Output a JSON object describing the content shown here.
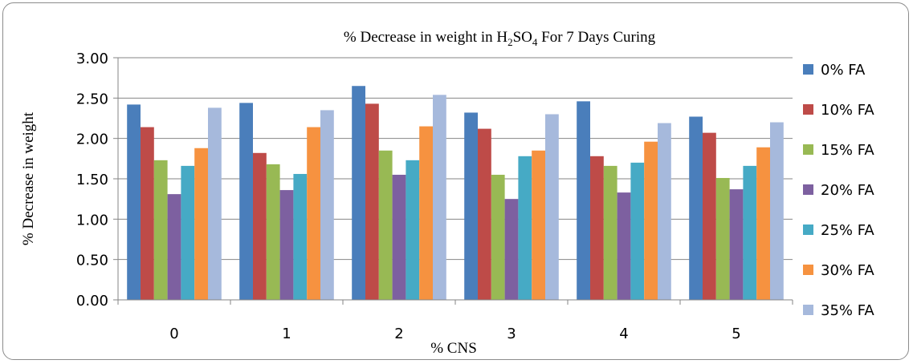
{
  "chart_data": {
    "type": "bar",
    "title": {
      "prefix": "% Decrease in weight in H",
      "sub1": "2",
      "mid": "SO",
      "sub2": "4",
      "suffix": " For 7 Days Curing"
    },
    "xlabel": "% CNS",
    "ylabel": "% Decrease in weight",
    "ylim": [
      0,
      3
    ],
    "yticks": [
      "0.00",
      "0.50",
      "1.00",
      "1.50",
      "2.00",
      "2.50",
      "3.00"
    ],
    "grid": true,
    "legend_position": "right",
    "categories": [
      "0",
      "1",
      "2",
      "3",
      "4",
      "5"
    ],
    "series": [
      {
        "name": "0% FA",
        "color": "#4a7ebb",
        "values": [
          2.42,
          2.44,
          2.65,
          2.32,
          2.46,
          2.27
        ]
      },
      {
        "name": "10% FA",
        "color": "#be4b48",
        "values": [
          2.14,
          1.82,
          2.43,
          2.12,
          1.78,
          2.07
        ]
      },
      {
        "name": "15% FA",
        "color": "#98b954",
        "values": [
          1.73,
          1.68,
          1.85,
          1.55,
          1.66,
          1.51
        ]
      },
      {
        "name": "20% FA",
        "color": "#7d60a0",
        "values": [
          1.31,
          1.36,
          1.55,
          1.25,
          1.33,
          1.37
        ]
      },
      {
        "name": "25% FA",
        "color": "#46aac5",
        "values": [
          1.66,
          1.56,
          1.73,
          1.78,
          1.7,
          1.66
        ]
      },
      {
        "name": "30% FA",
        "color": "#f69240",
        "values": [
          1.88,
          2.14,
          2.15,
          1.85,
          1.96,
          1.89
        ]
      },
      {
        "name": "35% FA",
        "color": "#a6b9dc",
        "values": [
          2.38,
          2.35,
          2.54,
          2.3,
          2.19,
          2.2
        ]
      }
    ]
  }
}
